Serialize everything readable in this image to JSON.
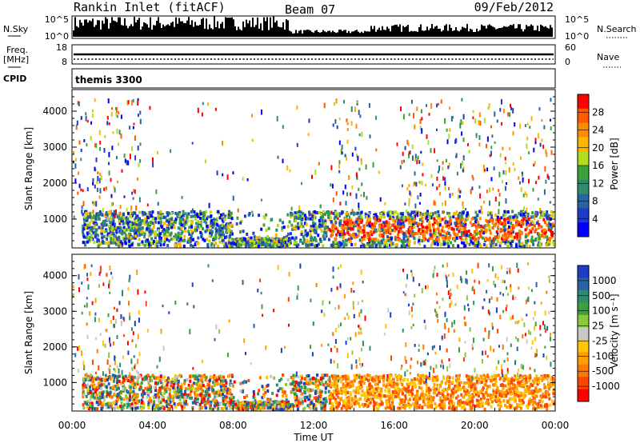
{
  "header": {
    "station": "Rankin Inlet (fitACF)",
    "beam": "Beam 07",
    "date": "09/Feb/2012"
  },
  "noise_panel": {
    "left_label": "N.Sky",
    "right_label": "N.Search",
    "left_ticks": [
      "10^5",
      "10^0"
    ],
    "right_ticks": [
      "10^5",
      "10^0"
    ]
  },
  "freq_panel": {
    "left_label_1": "Freq.",
    "left_label_2": "[MHz]",
    "right_label": "Nave",
    "left_ticks": [
      "18",
      "8"
    ],
    "right_ticks": [
      "60",
      "0"
    ]
  },
  "cpid_panel": {
    "label": "CPID",
    "value": "themis 3300"
  },
  "chart_data": [
    {
      "type": "heatmap",
      "name": "power",
      "ylabel": "Slant Range [km]",
      "yticks": [
        "1000",
        "2000",
        "3000",
        "4000"
      ],
      "ylim": [
        200,
        4600
      ],
      "colorbar_label": "Power [dB]",
      "colorbar_ticks": [
        "28",
        "24",
        "20",
        "16",
        "12",
        "8",
        "4"
      ],
      "colorbar_colors": [
        "#ff0000",
        "#ff5a00",
        "#ff8c00",
        "#ffb400",
        "#b4dc1e",
        "#3ca03c",
        "#2d8c6e",
        "#2864a0",
        "#1e3cc8",
        "#0000ff"
      ]
    },
    {
      "type": "heatmap",
      "name": "velocity",
      "ylabel": "Slant Range [km]",
      "yticks": [
        "1000",
        "2000",
        "3000",
        "4000"
      ],
      "ylim": [
        200,
        4600
      ],
      "xticks": [
        "00:00",
        "04:00",
        "08:00",
        "12:00",
        "16:00",
        "20:00",
        "00:00"
      ],
      "xlabel": "Time UT",
      "colorbar_label": "Velocity [m s⁻¹]",
      "colorbar_ticks": [
        "1000",
        "500",
        "100",
        "25",
        "-25",
        "-100",
        "-500",
        "-1000"
      ],
      "colorbar_colors": [
        "#1e3cc8",
        "#2864a0",
        "#2d8c6e",
        "#3ca03c",
        "#8cc83c",
        "#c8c8c8",
        "#ffc800",
        "#ffa000",
        "#ff7800",
        "#ff4600",
        "#ff0000"
      ]
    }
  ]
}
